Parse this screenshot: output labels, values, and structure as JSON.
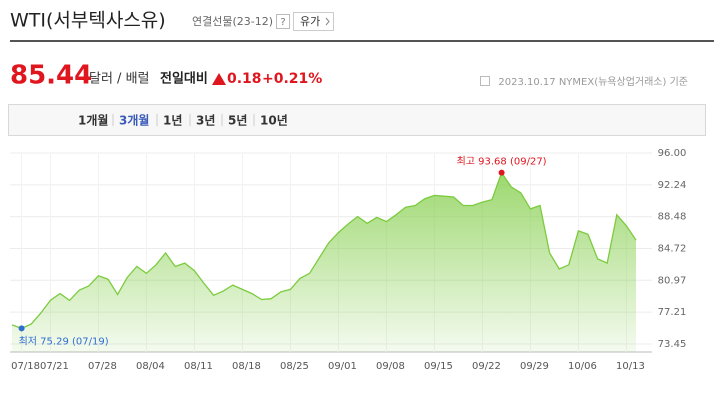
{
  "header": {
    "title": "WTI(서부텍사스유)",
    "subtitle": "연결선물(23-12)",
    "help": "?",
    "button": "유가"
  },
  "quote": {
    "price": "85.44",
    "unit": "달러 / 배럴",
    "change_label": "전일대비",
    "change": "0.18",
    "change_pct": "+0.21%",
    "source": "2023.10.17 NYMEX(뉴욕상업거래소) 기준"
  },
  "tabs": {
    "items": [
      "1개월",
      "3개월",
      "1년",
      "3년",
      "5년",
      "10년"
    ],
    "selected": 1
  },
  "chart_data": {
    "type": "area",
    "categories": [
      null,
      "07/18",
      null,
      null,
      "07/21",
      null,
      null,
      null,
      null,
      "07/28",
      null,
      null,
      null,
      null,
      "08/04",
      null,
      null,
      null,
      null,
      "08/11",
      null,
      null,
      null,
      null,
      "08/18",
      null,
      null,
      null,
      null,
      "08/25",
      null,
      null,
      null,
      null,
      "09/01",
      null,
      null,
      null,
      null,
      "09/08",
      null,
      null,
      null,
      null,
      "09/15",
      null,
      null,
      null,
      null,
      "09/22",
      null,
      null,
      null,
      null,
      "09/29",
      null,
      null,
      null,
      null,
      "10/06",
      null,
      null,
      null,
      null,
      "10/13",
      null
    ],
    "values": [
      75.7,
      75.29,
      75.8,
      77.1,
      78.6,
      79.4,
      78.6,
      79.8,
      80.3,
      81.5,
      81.1,
      79.3,
      81.3,
      82.6,
      81.8,
      82.8,
      84.2,
      82.6,
      83.0,
      82.1,
      80.6,
      79.2,
      79.7,
      80.4,
      79.9,
      79.4,
      78.7,
      78.8,
      79.6,
      79.9,
      81.2,
      81.8,
      83.6,
      85.4,
      86.6,
      87.6,
      88.5,
      87.7,
      88.4,
      87.9,
      88.7,
      89.6,
      89.8,
      90.6,
      91.0,
      90.9,
      90.8,
      89.8,
      89.8,
      90.2,
      90.5,
      93.68,
      92.0,
      91.3,
      89.4,
      89.8,
      84.2,
      82.3,
      82.8,
      86.8,
      86.4,
      83.5,
      83.0,
      88.7,
      87.4,
      85.7
    ],
    "color": "#7ccb3f",
    "ylim": [
      73.45,
      96
    ],
    "yticks": [
      {
        "value": 73.45,
        "label": "73.45"
      },
      77.21,
      80.97,
      84.72,
      88.48,
      92.24,
      {
        "value": 96,
        "label": "96.00"
      }
    ],
    "grid": true,
    "max_label": "최고 93.68 (09/27)",
    "max_color": "#e0161f",
    "min_label": "최저 75.29 (07/19)",
    "min_color": "#2d6fd0"
  }
}
